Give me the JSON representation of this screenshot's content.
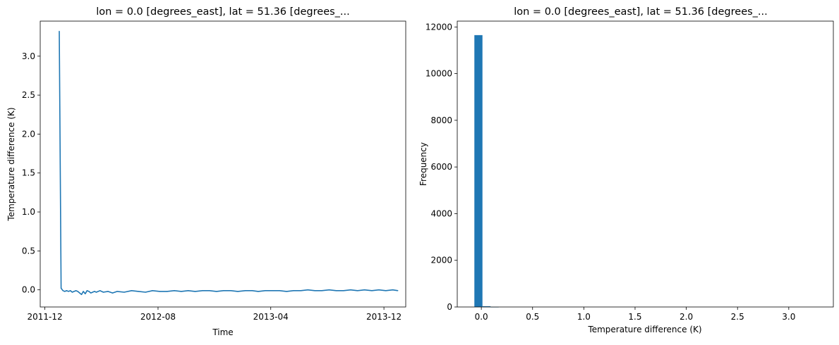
{
  "chart_data": [
    {
      "type": "line",
      "title": "lon = 0.0 [degrees_east], lat = 51.36 [degrees_...",
      "xlabel": "Time",
      "ylabel": "Temperature difference (K)",
      "x_ticks": [
        "2011-12",
        "2012-08",
        "2013-04",
        "2013-12"
      ],
      "y_ticks": [
        "0.0",
        "0.5",
        "1.0",
        "1.5",
        "2.0",
        "2.5",
        "3.0"
      ],
      "xlim": [
        "2011-11-21",
        "2014-01-17"
      ],
      "ylim": [
        -0.22,
        3.45
      ],
      "color": "#1f77b4",
      "grid": false,
      "series": [
        {
          "x": [
            "2012-01-01",
            "2012-01-05",
            "2012-01-09",
            "2012-01-13",
            "2012-01-17",
            "2012-01-21",
            "2012-01-25",
            "2012-01-29",
            "2012-02-02",
            "2012-02-06",
            "2012-02-10",
            "2012-02-14",
            "2012-02-18",
            "2012-02-22",
            "2012-02-26",
            "2012-03-01",
            "2012-03-05",
            "2012-03-09",
            "2012-03-13",
            "2012-03-17",
            "2012-03-21",
            "2012-03-25",
            "2012-03-29",
            "2012-04-05",
            "2012-04-15",
            "2012-04-25",
            "2012-05-05",
            "2012-05-20",
            "2012-06-05",
            "2012-06-20",
            "2012-07-05",
            "2012-07-20",
            "2012-08-05",
            "2012-08-20",
            "2012-09-05",
            "2012-09-20",
            "2012-10-05",
            "2012-10-20",
            "2012-11-05",
            "2012-11-20",
            "2012-12-05",
            "2012-12-20",
            "2013-01-05",
            "2013-01-20",
            "2013-02-05",
            "2013-02-20",
            "2013-03-05",
            "2013-03-20",
            "2013-04-05",
            "2013-04-20",
            "2013-05-05",
            "2013-05-20",
            "2013-06-05",
            "2013-06-20",
            "2013-07-05",
            "2013-07-20",
            "2013-08-05",
            "2013-08-20",
            "2013-09-05",
            "2013-09-20",
            "2013-10-05",
            "2013-10-20",
            "2013-11-05",
            "2013-11-20",
            "2013-12-05",
            "2013-12-20",
            "2013-12-31"
          ],
          "values": [
            3.32,
            0.02,
            -0.01,
            -0.02,
            -0.01,
            -0.02,
            -0.01,
            -0.03,
            -0.02,
            -0.01,
            -0.02,
            -0.04,
            -0.06,
            -0.02,
            -0.05,
            -0.01,
            -0.02,
            -0.04,
            -0.03,
            -0.02,
            -0.03,
            -0.02,
            -0.01,
            -0.03,
            -0.02,
            -0.04,
            -0.02,
            -0.03,
            -0.01,
            -0.02,
            -0.03,
            -0.01,
            -0.02,
            -0.02,
            -0.01,
            -0.02,
            -0.01,
            -0.02,
            -0.01,
            -0.01,
            -0.02,
            -0.01,
            -0.01,
            -0.02,
            -0.01,
            -0.01,
            -0.02,
            -0.01,
            -0.01,
            -0.01,
            -0.02,
            -0.01,
            -0.01,
            0.0,
            -0.01,
            -0.01,
            0.0,
            -0.01,
            -0.01,
            0.0,
            -0.01,
            0.0,
            -0.01,
            0.0,
            -0.01,
            0.0,
            -0.01
          ]
        }
      ]
    },
    {
      "type": "bar",
      "title": "lon = 0.0 [degrees_east], lat = 51.36 [degrees_...",
      "xlabel": "Temperature difference (K)",
      "ylabel": "Frequency",
      "x_ticks": [
        "0.0",
        "0.5",
        "1.0",
        "1.5",
        "2.0",
        "2.5",
        "3.0"
      ],
      "y_ticks": [
        "0",
        "2000",
        "4000",
        "6000",
        "8000",
        "10000",
        "12000"
      ],
      "xlim": [
        -0.235,
        3.435
      ],
      "ylim": [
        0,
        12250
      ],
      "color": "#1f77b4",
      "grid": false,
      "bin_edges": [
        -0.068,
        0.011,
        0.09,
        0.169
      ],
      "counts": [
        11650,
        30,
        2
      ]
    }
  ]
}
